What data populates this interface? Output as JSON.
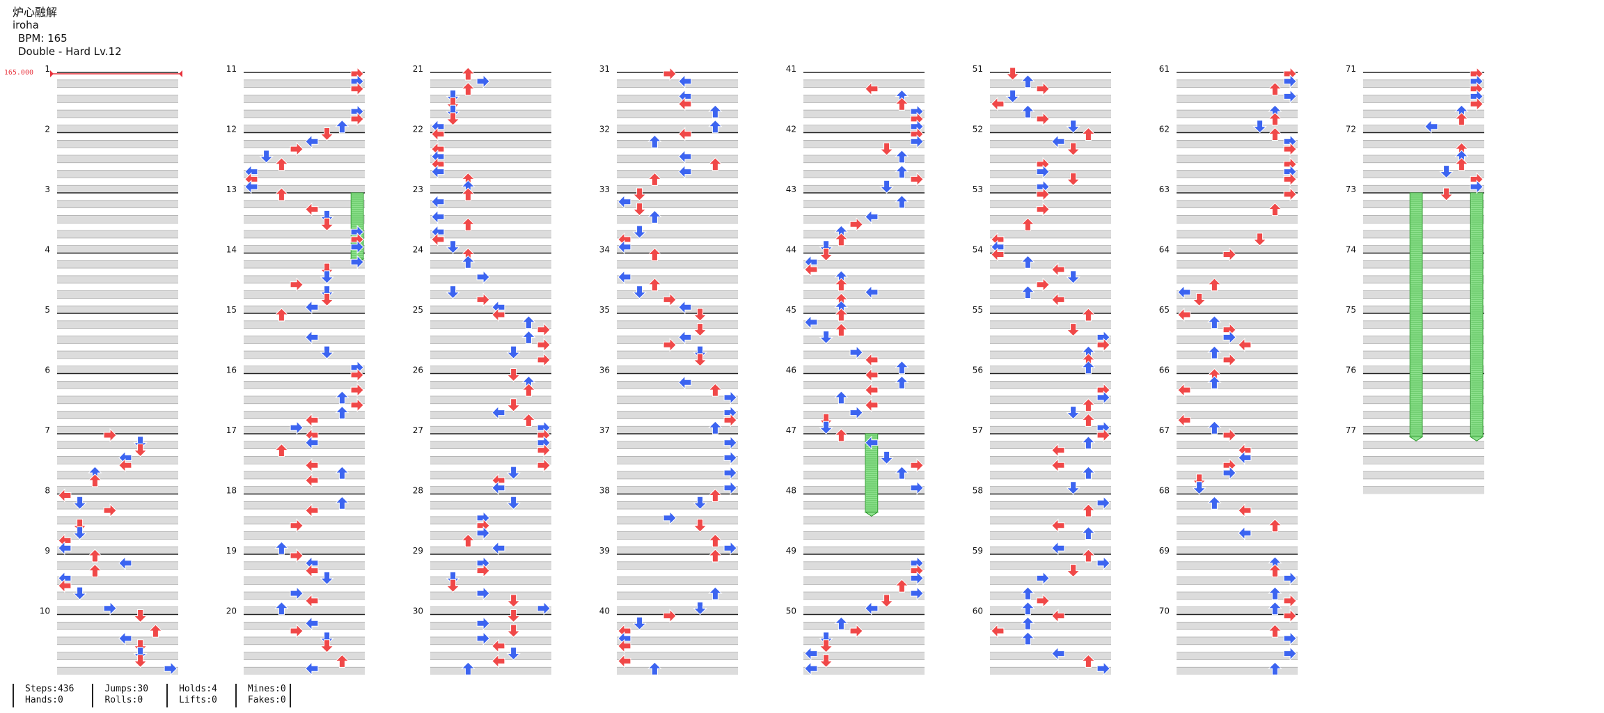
{
  "song": {
    "title": "炉心融解",
    "artist": "iroha",
    "bpm_label": "BPM: 165",
    "chart_label": "Double - Hard Lv.12"
  },
  "bpm_marker": {
    "label": "165.000",
    "color": "#e8323c"
  },
  "colors": {
    "red": "#f04848",
    "blue": "#3c64f0",
    "hold": "#8ee28e",
    "stripe": "#dcdcdc"
  },
  "chart_data": {
    "type": "table",
    "measures_total": 77,
    "measures_per_column": 10,
    "panels_per_measure": 8,
    "note_pattern_seed": 165,
    "holds": [
      {
        "start_measure": 13,
        "start_beat": 0.0,
        "end_measure": 13,
        "end_beat": 1.1,
        "lane": 7
      },
      {
        "start_measure": 47,
        "start_beat": 0.0,
        "end_measure": 48,
        "end_beat": 0.3,
        "lane": 4
      },
      {
        "start_measure": 73,
        "start_beat": 0.0,
        "end_measure": 77,
        "end_beat": 0.05,
        "lane": 3
      },
      {
        "start_measure": 73,
        "start_beat": 0.0,
        "end_measure": 77,
        "end_beat": 0.05,
        "lane": 7
      }
    ]
  },
  "stats": [
    {
      "line1": "Steps:436",
      "line2": "Hands:0"
    },
    {
      "line1": "Jumps:30",
      "line2": "Rolls:0"
    },
    {
      "line1": "Holds:4",
      "line2": "Lifts:0"
    },
    {
      "line1": "Mines:0",
      "line2": "Fakes:0"
    }
  ]
}
